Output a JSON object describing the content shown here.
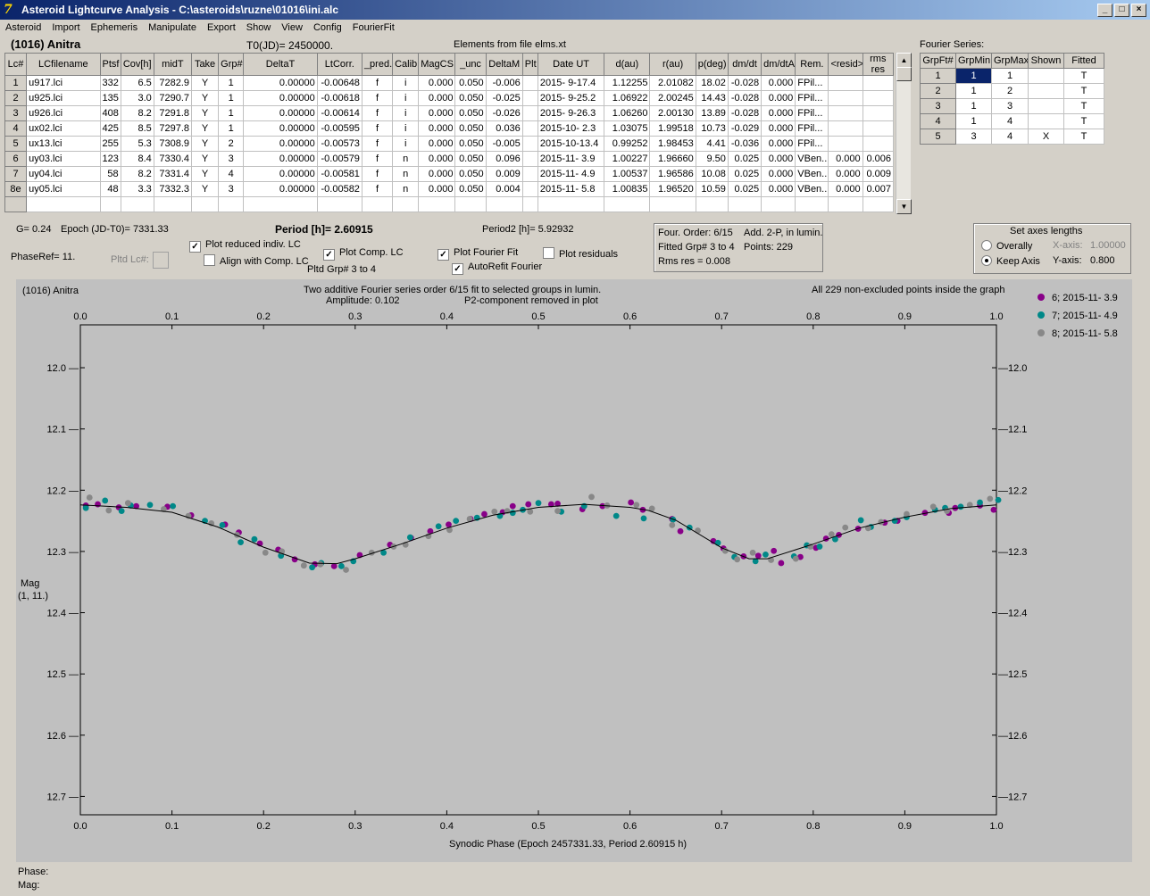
{
  "window": {
    "title": "Asteroid Lightcurve Analysis - C:\\asteroids\\ruzne\\01016\\ini.alc",
    "icon_label": "7",
    "min": "_",
    "max": "□",
    "close": "×"
  },
  "menu": [
    "Asteroid",
    "Import",
    "Ephemeris",
    "Manipulate",
    "Export",
    "Show",
    "View",
    "Config",
    "FourierFit"
  ],
  "header": {
    "asteroid": "(1016) Anitra",
    "t0": "T0(JD)= 2450000.",
    "elements": "Elements from file elms.xt",
    "fourier_series_label": "Fourier Series:"
  },
  "lc_table": {
    "columns": [
      "Lc#",
      "LCfilename",
      "Ptsf",
      "Cov[h]",
      "midT",
      "Take",
      "Grp#",
      "DeltaT",
      "LtCorr.",
      "_pred.",
      "Calib.",
      "MagCS",
      "_unc",
      "DeltaM",
      "Plt",
      "Date UT",
      "d(au)",
      "r(au)",
      "p(deg)",
      "dm/dt",
      "dm/dtA",
      "Rem.",
      "<resid>",
      "rms res"
    ],
    "rows": [
      [
        "1",
        "u917.lci",
        "332",
        "6.5",
        "7282.9",
        "Y",
        "1",
        "0.00000",
        "-0.00648",
        "f",
        "i",
        "0.000",
        "0.050",
        "-0.006",
        "",
        "2015- 9-17.4",
        "1.12255",
        "2.01082",
        "18.02",
        "-0.028",
        "0.000",
        "FPil...",
        "",
        ""
      ],
      [
        "2",
        "u925.lci",
        "135",
        "3.0",
        "7290.7",
        "Y",
        "1",
        "0.00000",
        "-0.00618",
        "f",
        "i",
        "0.000",
        "0.050",
        "-0.025",
        "",
        "2015- 9-25.2",
        "1.06922",
        "2.00245",
        "14.43",
        "-0.028",
        "0.000",
        "FPil...",
        "",
        ""
      ],
      [
        "3",
        "u926.lci",
        "408",
        "8.2",
        "7291.8",
        "Y",
        "1",
        "0.00000",
        "-0.00614",
        "f",
        "i",
        "0.000",
        "0.050",
        "-0.026",
        "",
        "2015- 9-26.3",
        "1.06260",
        "2.00130",
        "13.89",
        "-0.028",
        "0.000",
        "FPil...",
        "",
        ""
      ],
      [
        "4",
        "ux02.lci",
        "425",
        "8.5",
        "7297.8",
        "Y",
        "1",
        "0.00000",
        "-0.00595",
        "f",
        "i",
        "0.000",
        "0.050",
        "0.036",
        "",
        "2015-10- 2.3",
        "1.03075",
        "1.99518",
        "10.73",
        "-0.029",
        "0.000",
        "FPil...",
        "",
        ""
      ],
      [
        "5",
        "ux13.lci",
        "255",
        "5.3",
        "7308.9",
        "Y",
        "2",
        "0.00000",
        "-0.00573",
        "f",
        "i",
        "0.000",
        "0.050",
        "-0.005",
        "",
        "2015-10-13.4",
        "0.99252",
        "1.98453",
        "4.41",
        "-0.036",
        "0.000",
        "FPil...",
        "",
        ""
      ],
      [
        "6",
        "uy03.lci",
        "123",
        "8.4",
        "7330.4",
        "Y",
        "3",
        "0.00000",
        "-0.00579",
        "f",
        "n",
        "0.000",
        "0.050",
        "0.096",
        "",
        "2015-11- 3.9",
        "1.00227",
        "1.96660",
        "9.50",
        "0.025",
        "0.000",
        "VBen...",
        "0.000",
        "0.006"
      ],
      [
        "7",
        "uy04.lci",
        "58",
        "8.2",
        "7331.4",
        "Y",
        "4",
        "0.00000",
        "-0.00581",
        "f",
        "n",
        "0.000",
        "0.050",
        "0.009",
        "",
        "2015-11- 4.9",
        "1.00537",
        "1.96586",
        "10.08",
        "0.025",
        "0.000",
        "VBen...",
        "0.000",
        "0.009"
      ],
      [
        "8e",
        "uy05.lci",
        "48",
        "3.3",
        "7332.3",
        "Y",
        "3",
        "0.00000",
        "-0.00582",
        "f",
        "n",
        "0.000",
        "0.050",
        "0.004",
        "",
        "2015-11- 5.8",
        "1.00835",
        "1.96520",
        "10.59",
        "0.025",
        "0.000",
        "VBen...",
        "0.000",
        "0.007"
      ]
    ]
  },
  "fourier_table": {
    "columns": [
      "GrpFt#",
      "GrpMin",
      "GrpMax",
      "Shown",
      "Fitted"
    ],
    "rows": [
      [
        "1",
        "1",
        "1",
        "",
        "T"
      ],
      [
        "2",
        "1",
        "2",
        "",
        "T"
      ],
      [
        "3",
        "1",
        "3",
        "",
        "T"
      ],
      [
        "4",
        "1",
        "4",
        "",
        "T"
      ],
      [
        "5",
        "3",
        "4",
        "X",
        "T"
      ]
    ]
  },
  "controls": {
    "g": "G= 0.24",
    "epoch": "Epoch (JD-T0)= 7331.33",
    "period": "Period [h]= 2.60915",
    "period2": "Period2 [h]= 5.92932",
    "phaseref": "PhaseRef= 11.",
    "pltd_lc": "Pltd Lc#:",
    "plot_reduced": "Plot reduced indiv. LC",
    "align_comp": "Align with Comp. LC",
    "plot_comp": "Plot Comp. LC",
    "pltd_grp": "Pltd Grp#  3  to  4",
    "plot_fourier": "Plot Fourier Fit",
    "plot_residuals": "Plot residuals",
    "autorefit": "AutoRefit Fourier",
    "plot_reduced_checked": true,
    "align_comp_checked": false,
    "plot_comp_checked": true,
    "plot_fourier_checked": true,
    "plot_residuals_checked": false,
    "autorefit_checked": true
  },
  "fit_info": {
    "order": "Four. Order:  6/15",
    "add": "Add. 2-P, in lumin.",
    "fitted": "Fitted Grp# 3 to 4",
    "points": "Points: 229",
    "rms": "Rms res     = 0.008"
  },
  "axes_box": {
    "title": "Set axes lengths",
    "overally": "Overally",
    "keep": "Keep Axis",
    "xaxis": "X-axis:",
    "xval": "1.00000",
    "yaxis": "Y-axis:",
    "yval": "0.800",
    "keep_selected": true
  },
  "plot": {
    "object": "(1016) Anitra",
    "desc1": "Two additive Fourier series order 6/15 fit to selected groups in lumin.",
    "desc2": "Amplitude: 0.102",
    "desc3": "P2-component removed in plot",
    "right_note": "All 229 non-excluded points inside the graph",
    "ylabel": "Mag",
    "ylabel2": "(1, 11.)",
    "xlabel": "Synodic Phase (Epoch 2457331.33, Period 2.60915 h)"
  },
  "status": {
    "phase": "Phase:",
    "mag": "Mag:"
  },
  "chart_data": {
    "type": "scatter",
    "xlim": [
      0.0,
      1.0
    ],
    "ylim": [
      12.73,
      11.93
    ],
    "y_inverted": true,
    "xticks": [
      "0.0",
      "0.1",
      "0.2",
      "0.3",
      "0.4",
      "0.5",
      "0.6",
      "0.7",
      "0.8",
      "0.9",
      "1.0"
    ],
    "yticks": [
      "12.0",
      "12.1",
      "12.2",
      "12.3",
      "12.4",
      "12.5",
      "12.6",
      "12.7"
    ],
    "legend_position": "top-right",
    "series": [
      {
        "name": "6; 2015-11- 3.9",
        "color": "#880088",
        "points": [
          [
            0.006,
            12.225
          ],
          [
            0.019,
            12.223
          ],
          [
            0.042,
            12.228
          ],
          [
            0.061,
            12.226
          ],
          [
            0.095,
            12.227
          ],
          [
            0.121,
            12.241
          ],
          [
            0.158,
            12.256
          ],
          [
            0.173,
            12.269
          ],
          [
            0.196,
            12.287
          ],
          [
            0.216,
            12.297
          ],
          [
            0.234,
            12.313
          ],
          [
            0.256,
            12.321
          ],
          [
            0.277,
            12.324
          ],
          [
            0.305,
            12.306
          ],
          [
            0.338,
            12.289
          ],
          [
            0.361,
            12.278
          ],
          [
            0.382,
            12.267
          ],
          [
            0.402,
            12.256
          ],
          [
            0.426,
            12.247
          ],
          [
            0.441,
            12.239
          ],
          [
            0.461,
            12.236
          ],
          [
            0.472,
            12.226
          ],
          [
            0.489,
            12.223
          ],
          [
            0.514,
            12.223
          ],
          [
            0.521,
            12.222
          ],
          [
            0.548,
            12.231
          ],
          [
            0.57,
            12.226
          ],
          [
            0.601,
            12.22
          ],
          [
            0.614,
            12.232
          ],
          [
            0.646,
            12.247
          ],
          [
            0.655,
            12.267
          ],
          [
            0.691,
            12.283
          ],
          [
            0.702,
            12.295
          ],
          [
            0.724,
            12.308
          ],
          [
            0.74,
            12.307
          ],
          [
            0.757,
            12.299
          ],
          [
            0.765,
            12.319
          ],
          [
            0.786,
            12.309
          ],
          [
            0.803,
            12.294
          ],
          [
            0.814,
            12.279
          ],
          [
            0.828,
            12.273
          ],
          [
            0.849,
            12.263
          ],
          [
            0.878,
            12.253
          ],
          [
            0.892,
            12.25
          ],
          [
            0.922,
            12.237
          ],
          [
            0.948,
            12.237
          ],
          [
            0.955,
            12.229
          ],
          [
            0.982,
            12.225
          ],
          [
            0.997,
            12.232
          ]
        ]
      },
      {
        "name": "7; 2015-11- 4.9",
        "color": "#008888",
        "points": [
          [
            0.006,
            12.229
          ],
          [
            0.027,
            12.217
          ],
          [
            0.045,
            12.234
          ],
          [
            0.055,
            12.225
          ],
          [
            0.076,
            12.224
          ],
          [
            0.101,
            12.226
          ],
          [
            0.136,
            12.25
          ],
          [
            0.155,
            12.257
          ],
          [
            0.175,
            12.285
          ],
          [
            0.19,
            12.28
          ],
          [
            0.219,
            12.307
          ],
          [
            0.253,
            12.326
          ],
          [
            0.263,
            12.319
          ],
          [
            0.285,
            12.324
          ],
          [
            0.298,
            12.316
          ],
          [
            0.331,
            12.302
          ],
          [
            0.36,
            12.277
          ],
          [
            0.391,
            12.259
          ],
          [
            0.41,
            12.25
          ],
          [
            0.433,
            12.245
          ],
          [
            0.458,
            12.242
          ],
          [
            0.472,
            12.237
          ],
          [
            0.483,
            12.232
          ],
          [
            0.5,
            12.221
          ],
          [
            0.525,
            12.235
          ],
          [
            0.55,
            12.226
          ],
          [
            0.585,
            12.242
          ],
          [
            0.615,
            12.246
          ],
          [
            0.647,
            12.248
          ],
          [
            0.665,
            12.261
          ],
          [
            0.696,
            12.286
          ],
          [
            0.714,
            12.309
          ],
          [
            0.737,
            12.316
          ],
          [
            0.748,
            12.305
          ],
          [
            0.779,
            12.308
          ],
          [
            0.793,
            12.29
          ],
          [
            0.807,
            12.292
          ],
          [
            0.824,
            12.28
          ],
          [
            0.852,
            12.249
          ],
          [
            0.863,
            12.26
          ],
          [
            0.889,
            12.25
          ],
          [
            0.902,
            12.244
          ],
          [
            0.933,
            12.232
          ],
          [
            0.944,
            12.229
          ],
          [
            0.961,
            12.227
          ],
          [
            0.982,
            12.22
          ],
          [
            1.002,
            12.216
          ]
        ]
      },
      {
        "name": "8; 2015-11- 5.8",
        "color": "#888888",
        "points": [
          [
            0.01,
            12.212
          ],
          [
            0.031,
            12.233
          ],
          [
            0.052,
            12.221
          ],
          [
            0.091,
            12.231
          ],
          [
            0.118,
            12.242
          ],
          [
            0.143,
            12.254
          ],
          [
            0.171,
            12.273
          ],
          [
            0.202,
            12.302
          ],
          [
            0.22,
            12.3
          ],
          [
            0.244,
            12.323
          ],
          [
            0.262,
            12.321
          ],
          [
            0.29,
            12.33
          ],
          [
            0.318,
            12.302
          ],
          [
            0.342,
            12.292
          ],
          [
            0.355,
            12.289
          ],
          [
            0.38,
            12.275
          ],
          [
            0.403,
            12.265
          ],
          [
            0.425,
            12.247
          ],
          [
            0.452,
            12.235
          ],
          [
            0.466,
            12.234
          ],
          [
            0.491,
            12.235
          ],
          [
            0.521,
            12.234
          ],
          [
            0.558,
            12.211
          ],
          [
            0.575,
            12.225
          ],
          [
            0.607,
            12.224
          ],
          [
            0.624,
            12.23
          ],
          [
            0.646,
            12.257
          ],
          [
            0.674,
            12.266
          ],
          [
            0.704,
            12.299
          ],
          [
            0.717,
            12.313
          ],
          [
            0.734,
            12.302
          ],
          [
            0.754,
            12.314
          ],
          [
            0.781,
            12.312
          ],
          [
            0.797,
            12.292
          ],
          [
            0.82,
            12.272
          ],
          [
            0.835,
            12.261
          ],
          [
            0.86,
            12.262
          ],
          [
            0.874,
            12.252
          ],
          [
            0.902,
            12.239
          ],
          [
            0.931,
            12.227
          ],
          [
            0.946,
            12.234
          ],
          [
            0.971,
            12.224
          ],
          [
            0.993,
            12.214
          ]
        ]
      }
    ],
    "fit_curve": [
      [
        0.0,
        12.224
      ],
      [
        0.05,
        12.228
      ],
      [
        0.1,
        12.236
      ],
      [
        0.15,
        12.26
      ],
      [
        0.2,
        12.293
      ],
      [
        0.25,
        12.319
      ],
      [
        0.28,
        12.32
      ],
      [
        0.3,
        12.312
      ],
      [
        0.35,
        12.288
      ],
      [
        0.4,
        12.262
      ],
      [
        0.45,
        12.241
      ],
      [
        0.5,
        12.228
      ],
      [
        0.55,
        12.223
      ],
      [
        0.6,
        12.228
      ],
      [
        0.62,
        12.233
      ],
      [
        0.65,
        12.249
      ],
      [
        0.7,
        12.294
      ],
      [
        0.73,
        12.312
      ],
      [
        0.75,
        12.312
      ],
      [
        0.8,
        12.288
      ],
      [
        0.85,
        12.262
      ],
      [
        0.9,
        12.244
      ],
      [
        0.95,
        12.23
      ],
      [
        1.0,
        12.224
      ]
    ]
  }
}
